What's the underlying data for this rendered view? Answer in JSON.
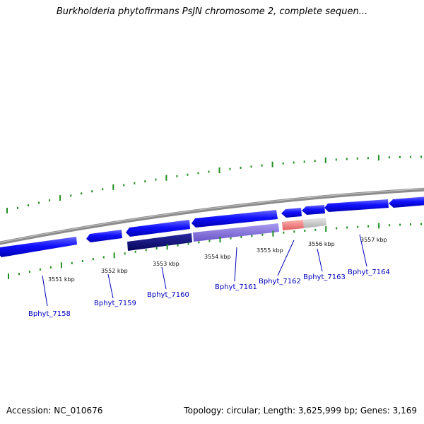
{
  "title": "Burkholderia phytofirmans PsJN chromosome 2, complete sequen...",
  "footer": {
    "accession": "Accession: NC_010676",
    "summary": "Topology: circular; Length: 3,625,999 bp; Genes: 3,169"
  },
  "colors": {
    "gene_fwd": "#1a1aff",
    "gene_rev": "#0000e0",
    "backbone": "#8c8c8c",
    "tick": "#1f8f1f",
    "label": "#0000bb",
    "track_dark": "#0a0a78",
    "track_purple": "#7a66d6",
    "track_red": "#f07a7a",
    "track_grey": "#c8c8c8"
  },
  "scale_labels": [
    "3551 kbp",
    "3552 kbp",
    "3553 kbp",
    "3554 kbp",
    "3555 kbp",
    "3556 kbp",
    "3557 kbp"
  ],
  "genes": [
    "Bphyt_7158",
    "Bphyt_7159",
    "Bphyt_7160",
    "Bphyt_7161",
    "Bphyt_7162",
    "Bphyt_7163",
    "Bphyt_7164"
  ]
}
